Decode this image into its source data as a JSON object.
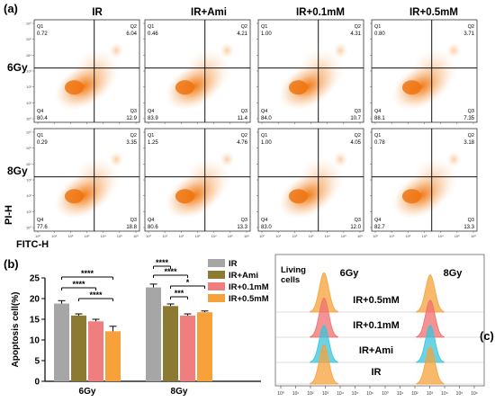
{
  "panel_letters": {
    "a": "(a)",
    "b": "(b)",
    "c": "(c)"
  },
  "flow": {
    "columns": [
      "IR",
      "IR+Ami",
      "IR+0.1mM",
      "IR+0.5mM"
    ],
    "rows": [
      "6Gy",
      "8Gy"
    ],
    "y_axis_label": "PI-H",
    "x_axis_label": "FITC-H",
    "quadrant_names": [
      "Q1",
      "Q2",
      "Q3",
      "Q4"
    ],
    "plots": [
      [
        {
          "q1": "0.72",
          "q2": "6.04",
          "q3": "12.9",
          "q4": "80.4"
        },
        {
          "q1": "0.46",
          "q2": "4.21",
          "q3": "11.4",
          "q4": "83.9"
        },
        {
          "q1": "1.00",
          "q2": "4.31",
          "q3": "10.7",
          "q4": "84.0"
        },
        {
          "q1": "0.80",
          "q2": "3.71",
          "q3": "7.35",
          "q4": "88.1"
        }
      ],
      [
        {
          "q1": "0.29",
          "q2": "3.35",
          "q3": "18.8",
          "q4": "77.6"
        },
        {
          "q1": "1.25",
          "q2": "4.76",
          "q3": "13.3",
          "q4": "80.6"
        },
        {
          "q1": "1.00",
          "q2": "4.05",
          "q3": "12.0",
          "q4": "83.0"
        },
        {
          "q1": "0.78",
          "q2": "3.18",
          "q3": "13.3",
          "q4": "82.7"
        }
      ]
    ]
  },
  "chart_data": [
    {
      "type": "bar",
      "panel": "(b)",
      "ylabel": "Apoptosis cell(%)",
      "categories": [
        "6Gy",
        "8Gy"
      ],
      "ylim": [
        0,
        25
      ],
      "yticks": [
        "0",
        "5",
        "10",
        "15",
        "20",
        "25"
      ],
      "series": [
        {
          "name": "IR",
          "color": "#a6a6a6",
          "values": [
            18.8,
            22.7
          ],
          "errors": [
            0.7,
            0.8
          ]
        },
        {
          "name": "IR+Ami",
          "color": "#8c7a33",
          "values": [
            15.9,
            18.2
          ],
          "errors": [
            0.4,
            0.5
          ]
        },
        {
          "name": "IR+0.1mM",
          "color": "#ef7f7f",
          "values": [
            14.5,
            15.9
          ],
          "errors": [
            0.5,
            0.4
          ]
        },
        {
          "name": "IR+0.5mM",
          "color": "#f7a13a",
          "values": [
            12.1,
            16.7
          ],
          "errors": [
            1.2,
            0.3
          ]
        }
      ],
      "significance": {
        "6Gy": [
          "****",
          "****",
          "****"
        ],
        "8Gy": [
          "****",
          "****",
          "*",
          "***"
        ]
      }
    },
    {
      "type": "area",
      "panel": "(c)",
      "title_left": "Living cells",
      "groups": [
        "6Gy",
        "8Gy"
      ],
      "series": [
        {
          "name": "IR+0.5mM",
          "color": "#f7a13a",
          "peak_6gy": 0.95,
          "peak_8gy": 0.9
        },
        {
          "name": "IR+0.1mM",
          "color": "#ef6f6f",
          "peak_6gy": 0.95,
          "peak_8gy": 0.9
        },
        {
          "name": "IR+Ami",
          "color": "#38c6dc",
          "peak_6gy": 0.9,
          "peak_8gy": 0.9
        },
        {
          "name": "IR",
          "color": "#f7a13a",
          "peak_6gy": 0.95,
          "peak_8gy": 0.9
        }
      ],
      "xticks": [
        "10⁰",
        "10¹",
        "10²",
        "10³",
        "10⁴",
        "10⁵",
        "10⁶"
      ]
    }
  ]
}
